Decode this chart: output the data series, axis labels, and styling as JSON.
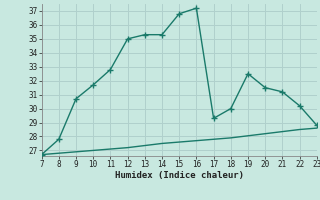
{
  "xlabel": "Humidex (Indice chaleur)",
  "x": [
    7,
    8,
    9,
    10,
    11,
    12,
    13,
    14,
    15,
    16,
    17,
    18,
    19,
    20,
    21,
    22,
    23
  ],
  "y_main": [
    26.7,
    27.8,
    30.7,
    31.7,
    32.8,
    35.0,
    35.3,
    35.3,
    36.8,
    37.2,
    29.3,
    30.0,
    32.5,
    31.5,
    31.2,
    30.2,
    28.8
  ],
  "y_secondary": [
    26.7,
    26.8,
    26.9,
    27.0,
    27.1,
    27.2,
    27.35,
    27.5,
    27.6,
    27.7,
    27.8,
    27.9,
    28.05,
    28.2,
    28.35,
    28.5,
    28.6
  ],
  "line_color": "#1a7a6a",
  "bg_color": "#c8e8e0",
  "grid_color": "#b0d0cc",
  "ylim_min": 26.6,
  "ylim_max": 37.5,
  "xlim_min": 7,
  "xlim_max": 23,
  "yticks": [
    27,
    28,
    29,
    30,
    31,
    32,
    33,
    34,
    35,
    36,
    37
  ],
  "xticks": [
    7,
    8,
    9,
    10,
    11,
    12,
    13,
    14,
    15,
    16,
    17,
    18,
    19,
    20,
    21,
    22,
    23
  ],
  "markersize": 2.5,
  "linewidth": 1.0,
  "tick_fontsize": 5.5,
  "label_fontsize": 6.5
}
